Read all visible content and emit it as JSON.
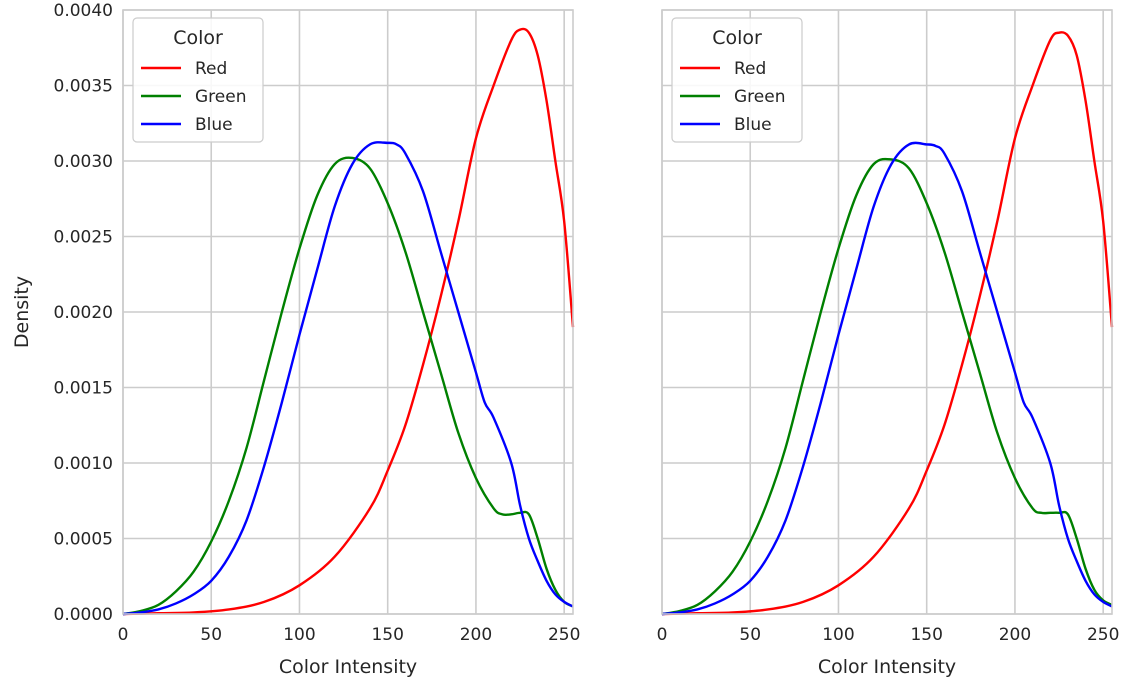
{
  "chart_data": [
    {
      "type": "line",
      "title": "",
      "xlabel": "Color Intensity",
      "ylabel": "Density",
      "xlim": [
        0,
        255
      ],
      "ylim": [
        0,
        0.004
      ],
      "xticks": [
        "0",
        "50",
        "100",
        "150",
        "200",
        "250"
      ],
      "yticks": [
        "0.0000",
        "0.0005",
        "0.0010",
        "0.0015",
        "0.0020",
        "0.0025",
        "0.0030",
        "0.0035",
        "0.0040"
      ],
      "grid": true,
      "legend": {
        "title": "Color",
        "placement": "top-left"
      },
      "series": [
        {
          "name": "Red",
          "color": "#ff0000",
          "x": [
            0,
            20,
            40,
            60,
            80,
            100,
            120,
            140,
            150,
            160,
            170,
            180,
            190,
            200,
            210,
            220,
            225,
            230,
            235,
            240,
            245,
            250,
            255
          ],
          "y": [
            0.0,
            5e-06,
            1e-05,
            3e-05,
            8e-05,
            0.00019,
            0.00038,
            0.0007,
            0.00095,
            0.00125,
            0.00165,
            0.0021,
            0.0026,
            0.00315,
            0.0035,
            0.0038,
            0.00387,
            0.00385,
            0.0037,
            0.0034,
            0.003,
            0.0026,
            0.0019
          ]
        },
        {
          "name": "Green",
          "color": "#008000",
          "x": [
            0,
            10,
            20,
            30,
            40,
            50,
            60,
            70,
            80,
            90,
            100,
            110,
            120,
            130,
            140,
            150,
            160,
            170,
            180,
            190,
            200,
            210,
            215,
            220,
            225,
            230,
            235,
            240,
            245,
            250,
            255
          ],
          "y": [
            0.0,
            2e-05,
            6e-05,
            0.00015,
            0.00028,
            0.00048,
            0.00075,
            0.0011,
            0.00155,
            0.002,
            0.00242,
            0.00277,
            0.00298,
            0.00302,
            0.00295,
            0.00272,
            0.0024,
            0.002,
            0.0016,
            0.0012,
            0.0009,
            0.0007,
            0.00066,
            0.00066,
            0.00067,
            0.00066,
            0.0005,
            0.0003,
            0.00016,
            8e-05,
            5e-05
          ]
        },
        {
          "name": "Blue",
          "color": "#0000ff",
          "x": [
            0,
            10,
            20,
            30,
            40,
            50,
            60,
            70,
            80,
            90,
            100,
            110,
            120,
            130,
            140,
            150,
            155,
            160,
            170,
            180,
            190,
            200,
            205,
            210,
            220,
            225,
            230,
            235,
            240,
            245,
            250,
            255
          ],
          "y": [
            0.0,
            1e-05,
            3e-05,
            7e-05,
            0.00013,
            0.00022,
            0.00038,
            0.00062,
            0.00098,
            0.0014,
            0.00185,
            0.00228,
            0.0027,
            0.00298,
            0.00311,
            0.00312,
            0.00311,
            0.00305,
            0.0028,
            0.0024,
            0.002,
            0.0016,
            0.0014,
            0.0013,
            0.001,
            0.00072,
            0.0005,
            0.00035,
            0.00022,
            0.00013,
            8e-05,
            5e-05
          ]
        }
      ]
    },
    {
      "type": "line",
      "title": "",
      "xlabel": "Color Intensity",
      "ylabel": "",
      "xlim": [
        0,
        255
      ],
      "ylim": [
        0,
        0.004
      ],
      "xticks": [
        "0",
        "50",
        "100",
        "150",
        "200",
        "250"
      ],
      "yticks": [],
      "grid": true,
      "legend": {
        "title": "Color",
        "placement": "top-left"
      },
      "series": [
        {
          "name": "Red",
          "color": "#ff0000",
          "x": [
            0,
            20,
            40,
            60,
            80,
            100,
            120,
            140,
            150,
            160,
            170,
            180,
            190,
            200,
            210,
            220,
            225,
            230,
            235,
            240,
            245,
            250,
            255
          ],
          "y": [
            0.0,
            5e-06,
            1e-05,
            3e-05,
            8e-05,
            0.00019,
            0.00038,
            0.0007,
            0.00095,
            0.00125,
            0.00165,
            0.0021,
            0.0026,
            0.00315,
            0.0035,
            0.0038,
            0.00385,
            0.00383,
            0.0037,
            0.0034,
            0.003,
            0.0026,
            0.0019
          ]
        },
        {
          "name": "Green",
          "color": "#008000",
          "x": [
            0,
            10,
            20,
            30,
            40,
            50,
            60,
            70,
            80,
            90,
            100,
            110,
            120,
            130,
            140,
            150,
            160,
            170,
            180,
            190,
            200,
            210,
            215,
            220,
            225,
            230,
            235,
            240,
            245,
            250,
            255
          ],
          "y": [
            0.0,
            2e-05,
            6e-05,
            0.00015,
            0.00028,
            0.00048,
            0.00075,
            0.0011,
            0.00155,
            0.002,
            0.00242,
            0.00277,
            0.00298,
            0.00301,
            0.00295,
            0.00272,
            0.0024,
            0.002,
            0.0016,
            0.0012,
            0.0009,
            0.0007,
            0.00067,
            0.00067,
            0.00067,
            0.00066,
            0.0005,
            0.0003,
            0.00016,
            9e-05,
            6e-05
          ]
        },
        {
          "name": "Blue",
          "color": "#0000ff",
          "x": [
            0,
            10,
            20,
            30,
            40,
            50,
            60,
            70,
            80,
            90,
            100,
            110,
            120,
            130,
            140,
            150,
            155,
            160,
            170,
            180,
            190,
            200,
            205,
            210,
            220,
            225,
            230,
            235,
            240,
            245,
            250,
            255
          ],
          "y": [
            0.0,
            1e-05,
            3e-05,
            7e-05,
            0.00013,
            0.00022,
            0.00038,
            0.00062,
            0.00098,
            0.0014,
            0.00185,
            0.00228,
            0.0027,
            0.00298,
            0.00311,
            0.00311,
            0.0031,
            0.00305,
            0.0028,
            0.0024,
            0.002,
            0.0016,
            0.0014,
            0.0013,
            0.001,
            0.00072,
            0.0005,
            0.00035,
            0.00022,
            0.00013,
            8e-05,
            5e-05
          ]
        }
      ]
    }
  ]
}
